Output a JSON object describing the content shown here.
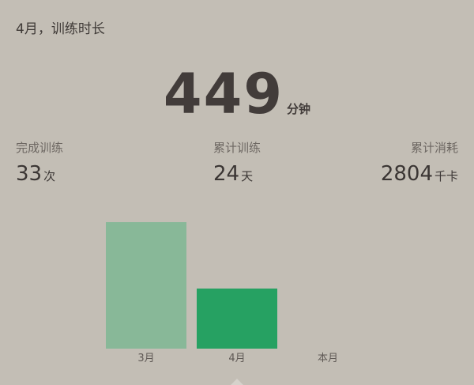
{
  "title": "4月，训练时长",
  "total": {
    "value": "449",
    "unit": "分钟"
  },
  "stats": [
    {
      "label": "完成训练",
      "value": "33",
      "unit": "次"
    },
    {
      "label": "累计训练",
      "value": "24",
      "unit": "天"
    },
    {
      "label": "累计消耗",
      "value": "2804",
      "unit": "千卡"
    }
  ],
  "chart_data": {
    "type": "bar",
    "categories": [
      "3月",
      "4月",
      "本月"
    ],
    "values": [
      160,
      76,
      0
    ],
    "colors": [
      "#88b898",
      "#26a162",
      "#26a162"
    ],
    "title": "",
    "xlabel": "",
    "ylabel": "",
    "ylim": [
      0,
      160
    ],
    "grid": false
  }
}
